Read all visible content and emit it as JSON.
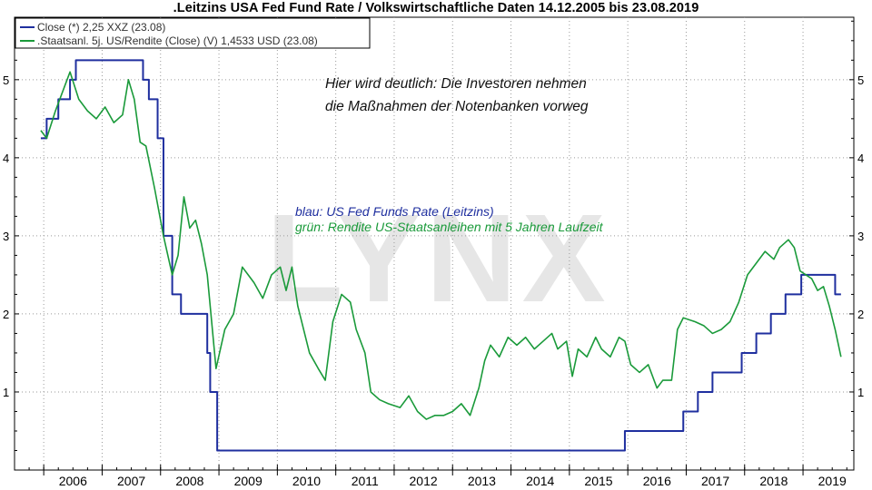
{
  "chart_data": {
    "type": "line",
    "title": ".Leitzins USA Fed Fund Rate / Volkswirtschaftliche Daten 14.12.2005 bis 23.08.2019",
    "xlabel": "",
    "ylabel": "",
    "xlim": [
      2005.5,
      2019.87
    ],
    "ylim": [
      0,
      5.8
    ],
    "y_ticks": [
      1,
      2,
      3,
      4,
      5
    ],
    "x_tick_labels": [
      "2006",
      "2007",
      "2008",
      "2009",
      "2010",
      "2011",
      "2012",
      "2013",
      "2014",
      "2015",
      "2016",
      "2017",
      "2018",
      "2019"
    ],
    "grid": true,
    "watermark": "LYNX",
    "legend": [
      {
        "label": "Close (*) 2,25 XXZ (23.08)",
        "color": "#1f2f9f"
      },
      {
        "label": ".Staatsanl. 5j. US/Rendite (Close) (V) 1,4533 USD (23.08)",
        "color": "#1a9a3a"
      }
    ],
    "annotations": {
      "main_line1": "Hier wird deutlich: Die Investoren nehmen",
      "main_line2": "die Maßnahmen der Notenbanken vorweg",
      "blue_note": "blau: US Fed Funds Rate (Leitzins)",
      "green_note": "grün: Rendite US-Staatsanleihen mit 5 Jahren Laufzeit"
    },
    "series": [
      {
        "type": "step",
        "color": "#1f2f9f",
        "points": [
          [
            2005.95,
            4.25
          ],
          [
            2006.05,
            4.5
          ],
          [
            2006.25,
            4.75
          ],
          [
            2006.45,
            5.0
          ],
          [
            2006.55,
            5.25
          ],
          [
            2007.7,
            5.0
          ],
          [
            2007.8,
            4.75
          ],
          [
            2007.95,
            4.25
          ],
          [
            2008.05,
            3.0
          ],
          [
            2008.2,
            2.25
          ],
          [
            2008.35,
            2.0
          ],
          [
            2008.8,
            1.5
          ],
          [
            2008.85,
            1.0
          ],
          [
            2008.97,
            0.25
          ],
          [
            2015.95,
            0.5
          ],
          [
            2016.95,
            0.75
          ],
          [
            2017.2,
            1.0
          ],
          [
            2017.45,
            1.25
          ],
          [
            2017.95,
            1.5
          ],
          [
            2018.2,
            1.75
          ],
          [
            2018.45,
            2.0
          ],
          [
            2018.7,
            2.25
          ],
          [
            2018.97,
            2.5
          ],
          [
            2019.55,
            2.25
          ],
          [
            2019.65,
            2.25
          ]
        ]
      },
      {
        "type": "line",
        "color": "#1a9a3a",
        "points": [
          [
            2005.95,
            4.35
          ],
          [
            2006.05,
            4.25
          ],
          [
            2006.2,
            4.6
          ],
          [
            2006.35,
            4.9
          ],
          [
            2006.45,
            5.1
          ],
          [
            2006.6,
            4.75
          ],
          [
            2006.75,
            4.6
          ],
          [
            2006.9,
            4.5
          ],
          [
            2007.05,
            4.65
          ],
          [
            2007.2,
            4.45
          ],
          [
            2007.35,
            4.55
          ],
          [
            2007.45,
            5.0
          ],
          [
            2007.55,
            4.75
          ],
          [
            2007.65,
            4.2
          ],
          [
            2007.75,
            4.15
          ],
          [
            2007.9,
            3.6
          ],
          [
            2008.05,
            3.0
          ],
          [
            2008.2,
            2.5
          ],
          [
            2008.3,
            2.75
          ],
          [
            2008.4,
            3.5
          ],
          [
            2008.5,
            3.1
          ],
          [
            2008.6,
            3.2
          ],
          [
            2008.7,
            2.9
          ],
          [
            2008.8,
            2.5
          ],
          [
            2008.9,
            1.7
          ],
          [
            2008.95,
            1.3
          ],
          [
            2009.1,
            1.8
          ],
          [
            2009.25,
            2.0
          ],
          [
            2009.4,
            2.6
          ],
          [
            2009.5,
            2.5
          ],
          [
            2009.6,
            2.4
          ],
          [
            2009.75,
            2.2
          ],
          [
            2009.9,
            2.5
          ],
          [
            2010.05,
            2.6
          ],
          [
            2010.15,
            2.3
          ],
          [
            2010.25,
            2.6
          ],
          [
            2010.35,
            2.1
          ],
          [
            2010.45,
            1.8
          ],
          [
            2010.55,
            1.5
          ],
          [
            2010.7,
            1.3
          ],
          [
            2010.82,
            1.15
          ],
          [
            2010.95,
            1.9
          ],
          [
            2011.1,
            2.25
          ],
          [
            2011.25,
            2.15
          ],
          [
            2011.35,
            1.8
          ],
          [
            2011.5,
            1.5
          ],
          [
            2011.6,
            1.0
          ],
          [
            2011.75,
            0.9
          ],
          [
            2011.9,
            0.85
          ],
          [
            2012.1,
            0.8
          ],
          [
            2012.25,
            0.95
          ],
          [
            2012.4,
            0.75
          ],
          [
            2012.55,
            0.65
          ],
          [
            2012.7,
            0.7
          ],
          [
            2012.85,
            0.7
          ],
          [
            2013.0,
            0.75
          ],
          [
            2013.15,
            0.85
          ],
          [
            2013.3,
            0.7
          ],
          [
            2013.45,
            1.05
          ],
          [
            2013.55,
            1.4
          ],
          [
            2013.65,
            1.6
          ],
          [
            2013.8,
            1.45
          ],
          [
            2013.95,
            1.7
          ],
          [
            2014.1,
            1.6
          ],
          [
            2014.25,
            1.7
          ],
          [
            2014.4,
            1.55
          ],
          [
            2014.55,
            1.65
          ],
          [
            2014.7,
            1.75
          ],
          [
            2014.8,
            1.55
          ],
          [
            2014.95,
            1.65
          ],
          [
            2015.05,
            1.2
          ],
          [
            2015.15,
            1.55
          ],
          [
            2015.3,
            1.45
          ],
          [
            2015.45,
            1.7
          ],
          [
            2015.55,
            1.55
          ],
          [
            2015.7,
            1.45
          ],
          [
            2015.85,
            1.7
          ],
          [
            2015.95,
            1.65
          ],
          [
            2016.05,
            1.35
          ],
          [
            2016.2,
            1.25
          ],
          [
            2016.35,
            1.35
          ],
          [
            2016.5,
            1.05
          ],
          [
            2016.6,
            1.15
          ],
          [
            2016.75,
            1.15
          ],
          [
            2016.85,
            1.8
          ],
          [
            2016.95,
            1.95
          ],
          [
            2017.15,
            1.9
          ],
          [
            2017.3,
            1.85
          ],
          [
            2017.45,
            1.75
          ],
          [
            2017.6,
            1.8
          ],
          [
            2017.75,
            1.9
          ],
          [
            2017.9,
            2.15
          ],
          [
            2018.05,
            2.5
          ],
          [
            2018.2,
            2.65
          ],
          [
            2018.35,
            2.8
          ],
          [
            2018.5,
            2.7
          ],
          [
            2018.6,
            2.85
          ],
          [
            2018.75,
            2.95
          ],
          [
            2018.85,
            2.85
          ],
          [
            2018.95,
            2.55
          ],
          [
            2019.05,
            2.5
          ],
          [
            2019.15,
            2.45
          ],
          [
            2019.25,
            2.3
          ],
          [
            2019.35,
            2.35
          ],
          [
            2019.45,
            2.1
          ],
          [
            2019.55,
            1.8
          ],
          [
            2019.65,
            1.45
          ]
        ]
      }
    ]
  }
}
